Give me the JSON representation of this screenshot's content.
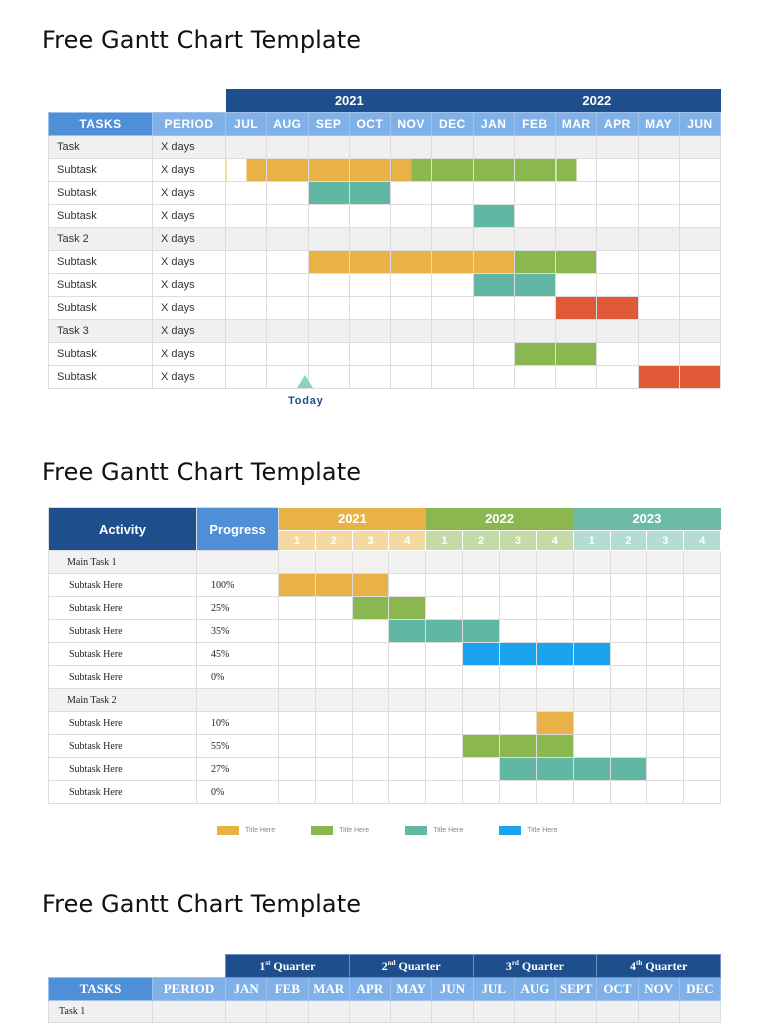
{
  "colors": {
    "orange": "#e9b246",
    "green": "#8ab74f",
    "teal": "#61b7a3",
    "red": "#e05a37",
    "blue": "#1aa4f0",
    "navy": "#1f4e8c",
    "mid_blue": "#4f8fd8",
    "light_blue": "#7fb1e8"
  },
  "chart1": {
    "title": "Free Gantt Chart Template",
    "years": [
      {
        "label": "2021",
        "span": 6
      },
      {
        "label": "2022",
        "span": 6
      }
    ],
    "header": {
      "tasks": "TASKS",
      "period": "PERIOD"
    },
    "months": [
      "JUL",
      "AUG",
      "SEP",
      "OCT",
      "NOV",
      "DEC",
      "JAN",
      "FEB",
      "MAR",
      "APR",
      "MAY",
      "JUN"
    ],
    "rows": [
      {
        "name": "Task",
        "period": "X days",
        "type": "task",
        "bars": []
      },
      {
        "name": "Subtask",
        "period": "X days",
        "type": "sub",
        "bars": [
          {
            "start": 0.5,
            "end": 4.5,
            "color": "orange"
          },
          {
            "start": 4.5,
            "end": 8.5,
            "color": "green"
          }
        ]
      },
      {
        "name": "Subtask",
        "period": "X days",
        "type": "sub",
        "bars": [
          {
            "start": 2,
            "end": 4,
            "color": "teal"
          }
        ]
      },
      {
        "name": "Subtask",
        "period": "X days",
        "type": "sub",
        "bars": [
          {
            "start": 6,
            "end": 7,
            "color": "teal"
          }
        ]
      },
      {
        "name": "Task 2",
        "period": "X days",
        "type": "task",
        "bars": []
      },
      {
        "name": "Subtask",
        "period": "X days",
        "type": "sub",
        "bars": [
          {
            "start": 2,
            "end": 7,
            "color": "orange"
          },
          {
            "start": 7,
            "end": 9,
            "color": "green"
          }
        ]
      },
      {
        "name": "Subtask",
        "period": "X days",
        "type": "sub",
        "bars": [
          {
            "start": 6,
            "end": 8,
            "color": "teal"
          }
        ]
      },
      {
        "name": "Subtask",
        "period": "X days",
        "type": "sub",
        "bars": [
          {
            "start": 8,
            "end": 10,
            "color": "red"
          }
        ]
      },
      {
        "name": "Task 3",
        "period": "X days",
        "type": "task",
        "bars": []
      },
      {
        "name": "Subtask",
        "period": "X days",
        "type": "sub",
        "bars": [
          {
            "start": 7,
            "end": 9,
            "color": "green"
          }
        ]
      },
      {
        "name": "Subtask",
        "period": "X days",
        "type": "sub",
        "bars": [
          {
            "start": 10,
            "end": 12,
            "color": "red"
          }
        ]
      }
    ],
    "today_label": "Today"
  },
  "chart2": {
    "title": "Free Gantt Chart Template",
    "header": {
      "activity": "Activity",
      "progress": "Progress"
    },
    "years": [
      {
        "label": "2021",
        "color": "#e9b246",
        "qcolor": "#f5d9a3"
      },
      {
        "label": "2022",
        "color": "#8ab74f",
        "qcolor": "#c5dba7"
      },
      {
        "label": "2023",
        "color": "#6cbba6",
        "qcolor": "#b5dcd2"
      }
    ],
    "quarters": [
      "1",
      "2",
      "3",
      "4"
    ],
    "rows": [
      {
        "name": "Main Task 1",
        "progress": "",
        "type": "main",
        "bars": []
      },
      {
        "name": "Subtask Here",
        "progress": "100%",
        "type": "sub",
        "bars": [
          {
            "start": 0,
            "end": 3,
            "color": "orange"
          }
        ]
      },
      {
        "name": "Subtask Here",
        "progress": "25%",
        "type": "sub",
        "bars": [
          {
            "start": 2,
            "end": 4,
            "color": "green"
          }
        ]
      },
      {
        "name": "Subtask Here",
        "progress": "35%",
        "type": "sub",
        "bars": [
          {
            "start": 3,
            "end": 6,
            "color": "teal"
          }
        ]
      },
      {
        "name": "Subtask Here",
        "progress": "45%",
        "type": "sub",
        "bars": [
          {
            "start": 5,
            "end": 9,
            "color": "blue"
          }
        ]
      },
      {
        "name": "Subtask Here",
        "progress": "0%",
        "type": "sub",
        "bars": []
      },
      {
        "name": "Main Task 2",
        "progress": "",
        "type": "main",
        "bars": []
      },
      {
        "name": "Subtask Here",
        "progress": "10%",
        "type": "sub",
        "bars": [
          {
            "start": 7,
            "end": 8,
            "color": "orange"
          }
        ]
      },
      {
        "name": "Subtask Here",
        "progress": "55%",
        "type": "sub",
        "bars": [
          {
            "start": 5,
            "end": 8,
            "color": "green"
          }
        ]
      },
      {
        "name": "Subtask Here",
        "progress": "27%",
        "type": "sub",
        "bars": [
          {
            "start": 6,
            "end": 10,
            "color": "teal"
          }
        ]
      },
      {
        "name": "Subtask Here",
        "progress": "0%",
        "type": "sub",
        "bars": []
      }
    ],
    "legend": [
      {
        "label": "Title Here",
        "color": "orange"
      },
      {
        "label": "Title Here",
        "color": "green"
      },
      {
        "label": "Title Here",
        "color": "teal"
      },
      {
        "label": "Title Here",
        "color": "blue"
      }
    ]
  },
  "chart3": {
    "title": "Free Gantt Chart Template",
    "quarters": [
      {
        "num": "1",
        "sup": "st",
        "label": "Quarter"
      },
      {
        "num": "2",
        "sup": "nd",
        "label": "Quarter"
      },
      {
        "num": "3",
        "sup": "rd",
        "label": "Quarter"
      },
      {
        "num": "4",
        "sup": "th",
        "label": "Quarter"
      }
    ],
    "header": {
      "tasks": "TASKS",
      "period": "PERIOD"
    },
    "months": [
      "JAN",
      "FEB",
      "MAR",
      "APR",
      "MAY",
      "JUN",
      "JUL",
      "AUG",
      "SEPT",
      "OCT",
      "NOV",
      "DEC"
    ],
    "rows": [
      {
        "name": "Task 1",
        "period": ""
      }
    ]
  }
}
